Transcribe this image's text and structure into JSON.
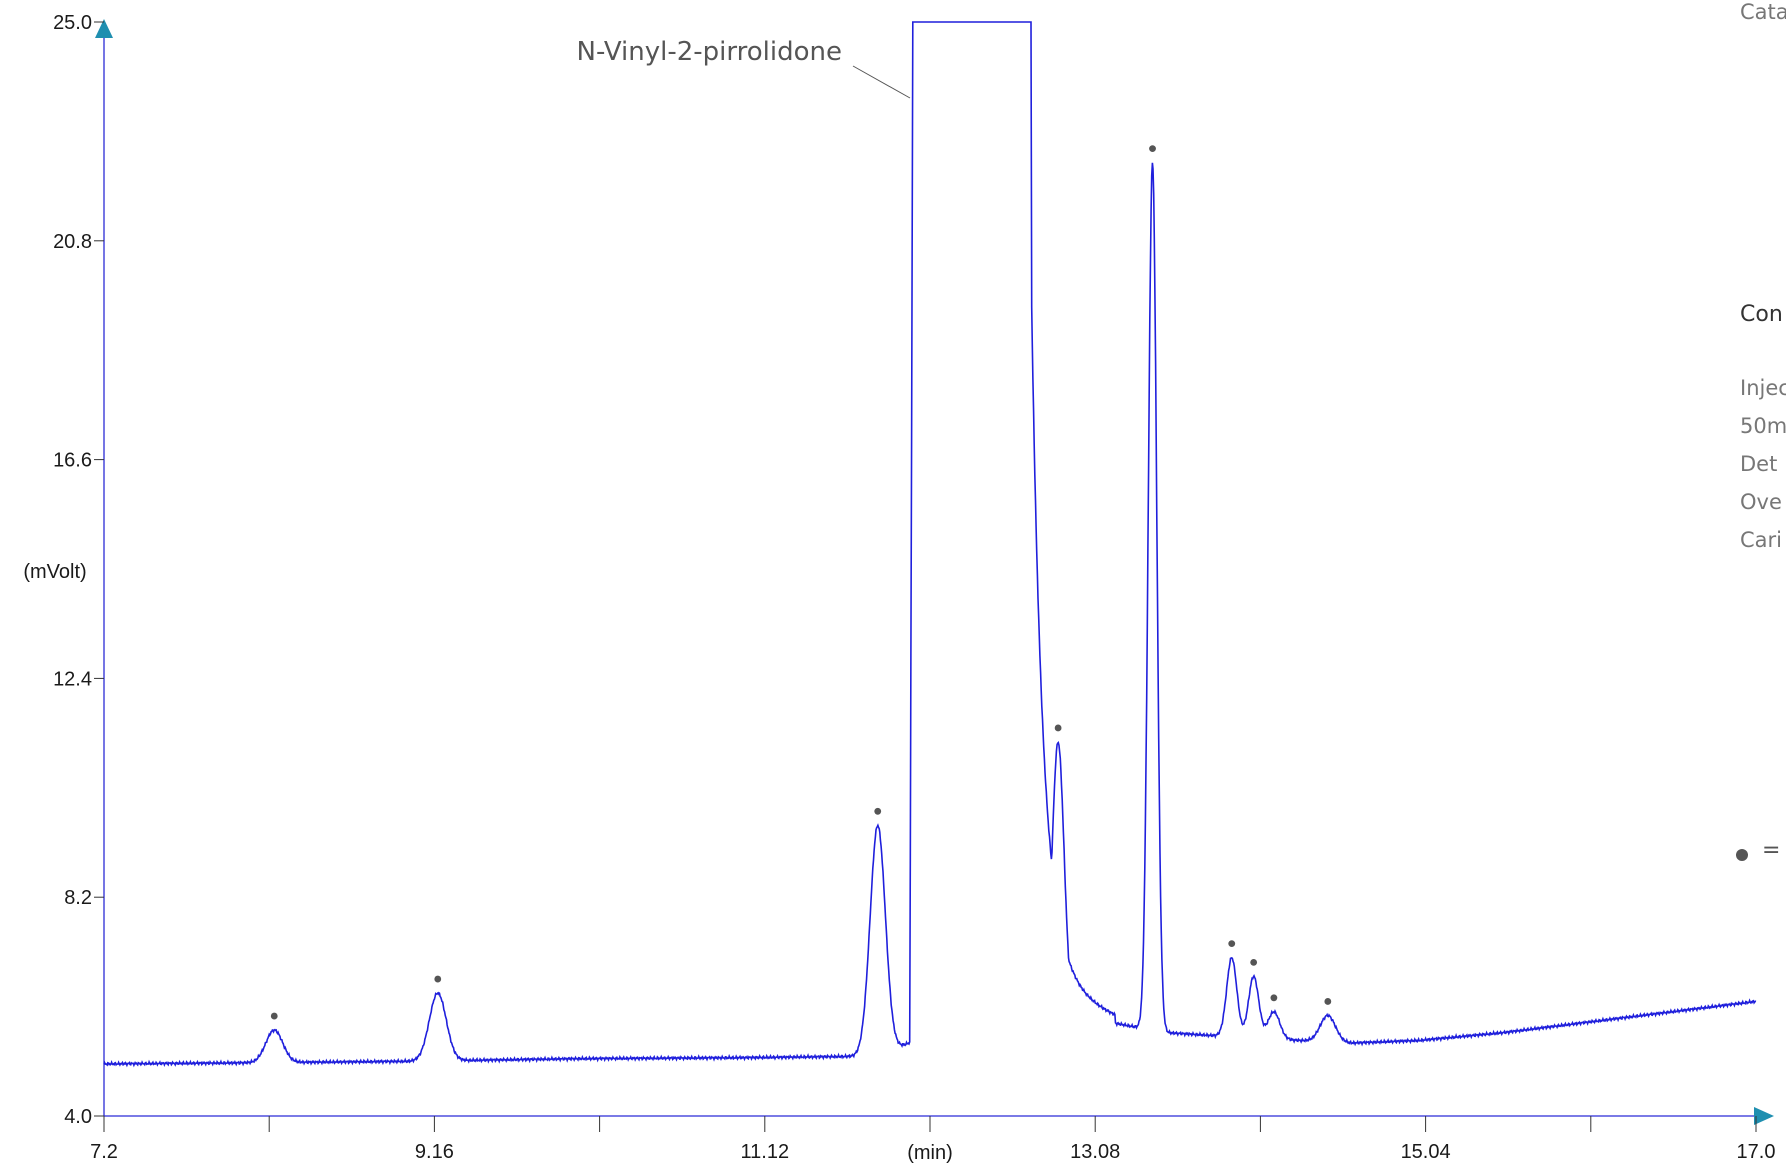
{
  "chart_data": {
    "type": "line",
    "title": "",
    "xlabel": "(min)",
    "ylabel": "(mVolt)",
    "xlim": [
      7.2,
      17.0
    ],
    "ylim": [
      4.0,
      25.0
    ],
    "x_tick_labels": [
      "7.2",
      "9.16",
      "11.12",
      "13.08",
      "15.04",
      "17.0"
    ],
    "y_tick_labels": [
      "4.0",
      "8.2",
      "12.4",
      "16.6",
      "20.8",
      "25.0"
    ],
    "baseline": {
      "x": [
        7.2,
        8.0,
        9.0,
        10.0,
        11.0,
        11.8,
        12.6,
        13.0,
        13.5,
        14.0,
        14.6,
        15.0,
        15.5,
        16.0,
        16.5,
        17.0
      ],
      "y": [
        5.0,
        5.02,
        5.05,
        5.1,
        5.12,
        5.15,
        6.3,
        5.9,
        5.6,
        5.5,
        5.4,
        5.45,
        5.6,
        5.8,
        6.0,
        6.2
      ]
    },
    "peaks": [
      {
        "x": 8.21,
        "y": 5.65,
        "width": 0.05
      },
      {
        "x": 9.18,
        "y": 6.36,
        "width": 0.05
      },
      {
        "x": 11.79,
        "y": 9.58,
        "width": 0.045
      },
      {
        "x": 12.86,
        "y": 11.18,
        "width": 0.035
      },
      {
        "x": 13.42,
        "y": 22.3,
        "width": 0.025
      },
      {
        "x": 13.89,
        "y": 7.04,
        "width": 0.03
      },
      {
        "x": 14.02,
        "y": 6.68,
        "width": 0.03
      },
      {
        "x": 14.14,
        "y": 6.0,
        "width": 0.035
      },
      {
        "x": 14.46,
        "y": 5.93,
        "width": 0.045
      }
    ],
    "main_peak": {
      "label": "N-Vinyl-2-pirrolidone",
      "x_start": 12.0,
      "x_end": 12.7,
      "y_top": 25.0
    },
    "marker": "●",
    "legend_marker_text": "="
  },
  "side_panel": {
    "top_text": "Cata",
    "heading": "Con",
    "lines": [
      "Injec",
      "50m",
      "Det",
      "Ove",
      "Cari"
    ]
  }
}
